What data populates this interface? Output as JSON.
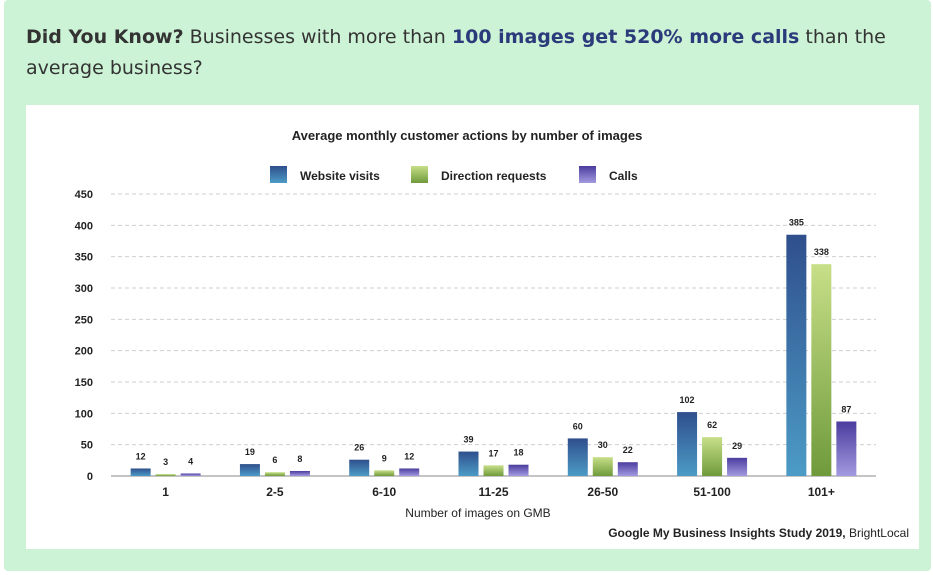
{
  "headline": {
    "lead": "Did You Know?",
    "text_before": "Businesses with more than",
    "highlight": "100 images get 520% more calls",
    "text_after": "than the average business?"
  },
  "source": {
    "bold": "Google My Business Insights Study 2019,",
    "normal": "BrightLocal"
  },
  "colors": {
    "card_bg": "#cdf3d6",
    "website": "#3d6aa1",
    "direction": "#a4c25a",
    "calls": "#7166b8"
  },
  "chart_data": {
    "type": "bar",
    "title": "Average monthly customer actions by number of images",
    "xlabel": "Number of images on GMB",
    "ylabel": "",
    "ylim": [
      0,
      450
    ],
    "yticks": [
      0,
      50,
      100,
      150,
      200,
      250,
      300,
      350,
      400,
      450
    ],
    "grid": true,
    "legend": "top",
    "categories": [
      "1",
      "2-5",
      "6-10",
      "11-25",
      "26-50",
      "51-100",
      "101+"
    ],
    "series": [
      {
        "name": "Website visits",
        "color": "#3d6aa1",
        "values": [
          12,
          19,
          26,
          39,
          60,
          102,
          385
        ]
      },
      {
        "name": "Direction requests",
        "color": "#a4c25a",
        "values": [
          3,
          6,
          9,
          17,
          30,
          62,
          338
        ]
      },
      {
        "name": "Calls",
        "color": "#7166b8",
        "values": [
          4,
          8,
          12,
          18,
          22,
          29,
          87
        ]
      }
    ]
  }
}
